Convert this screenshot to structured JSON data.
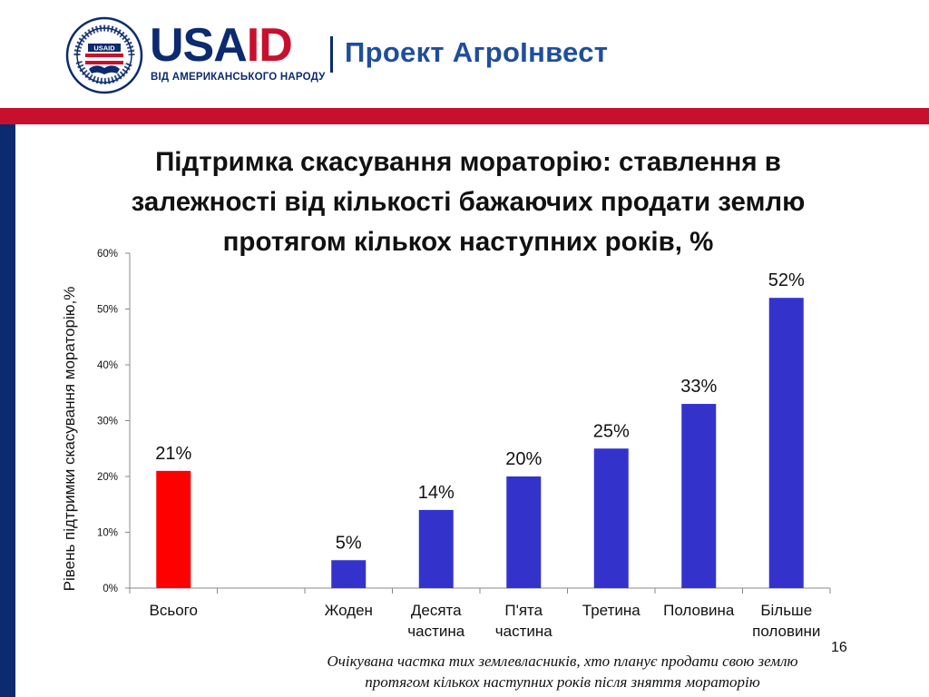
{
  "header": {
    "logo_seal_text": "UNITED STATES AGENCY INTERNATIONAL DEVELOPMENT USAID",
    "brand_name_part1": "USA",
    "brand_name_part2": "ID",
    "brand_tagline": "ВІД АМЕРИКАНСЬКОГО НАРОДУ",
    "project_name": "Проект АгроІнвест",
    "colors": {
      "brand_blue": "#0b2a6f",
      "brand_red": "#c8102e",
      "project_blue": "#1f4e9b"
    }
  },
  "slide": {
    "title_lines": [
      "Підтримка скасування мораторію: ставлення в",
      "залежності від кількості бажаючих продати землю",
      "протягом кількох наступних років, %"
    ],
    "footnote_lines": [
      "Очікувана частка тих землевласників, хто планує  продати свою землю",
      "протягом кількох наступних років після зняття мораторію"
    ],
    "page_number": "16"
  },
  "chart_data": {
    "type": "bar",
    "categories": [
      "Всього",
      "",
      "Жоден",
      "Десята частина",
      "П'ята частина",
      "Третина",
      "Половина",
      "Більше половини"
    ],
    "category_label_lines": [
      [
        "Всього"
      ],
      [
        ""
      ],
      [
        "Жоден"
      ],
      [
        "Десята",
        "частина"
      ],
      [
        "П'ята",
        "частина"
      ],
      [
        "Третина"
      ],
      [
        "Половина"
      ],
      [
        "Більше",
        "половини"
      ]
    ],
    "values": [
      21,
      null,
      5,
      14,
      20,
      25,
      33,
      52
    ],
    "value_labels": [
      "21%",
      "",
      "5%",
      "14%",
      "20%",
      "25%",
      "33%",
      "52%"
    ],
    "bar_colors": [
      "#ff0000",
      null,
      "#3333cc",
      "#3333cc",
      "#3333cc",
      "#3333cc",
      "#3333cc",
      "#3333cc"
    ],
    "ylabel": "Рівень підтримки скасування мораторію,%",
    "xlabel": "",
    "ylim": [
      0,
      60
    ],
    "yticks": [
      0,
      10,
      20,
      30,
      40,
      50,
      60
    ],
    "ytick_labels": [
      "0%",
      "10%",
      "20%",
      "30%",
      "40%",
      "50%",
      "60%"
    ],
    "grid": false,
    "legend": "none"
  }
}
